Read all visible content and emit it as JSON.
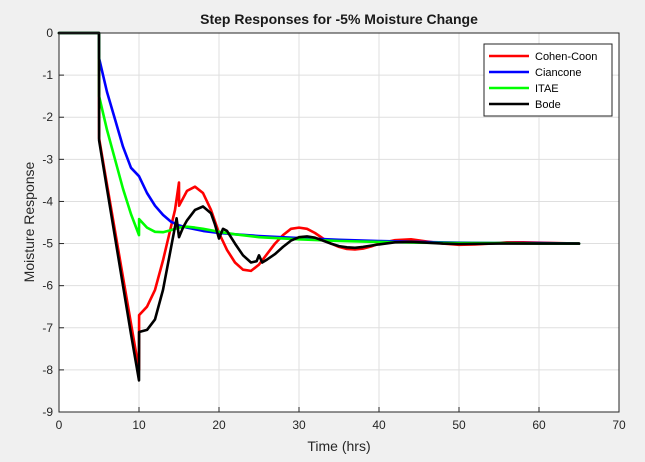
{
  "chart_data": {
    "type": "line",
    "title": "Step Responses for -5% Moisture Change",
    "xlabel": "Time (hrs)",
    "ylabel": "Moisture Response",
    "xlim": [
      0,
      70
    ],
    "ylim": [
      -9,
      0
    ],
    "xticks": [
      0,
      10,
      20,
      30,
      40,
      50,
      60,
      70
    ],
    "yticks": [
      0,
      -1,
      -2,
      -3,
      -4,
      -5,
      -6,
      -7,
      -8,
      -9
    ],
    "grid": true,
    "legend_position": "top-right",
    "series": [
      {
        "name": "Cohen-Coon",
        "color": "#ff0000",
        "x": [
          0,
          5,
          5.01,
          6,
          7,
          8,
          9,
          10,
          10.01,
          11,
          12,
          13,
          14,
          14.5,
          15,
          15.01,
          16,
          17,
          18,
          19,
          20,
          21,
          22,
          23,
          24,
          25,
          26,
          27,
          28,
          29,
          30,
          31,
          32,
          33,
          34,
          35,
          36,
          37,
          38,
          39,
          40,
          42,
          44,
          46,
          48,
          50,
          52,
          54,
          56,
          58,
          60,
          62,
          65
        ],
        "y": [
          0,
          0,
          -2.5,
          -3.6,
          -4.7,
          -5.8,
          -6.9,
          -8.0,
          -6.7,
          -6.5,
          -6.1,
          -5.4,
          -4.6,
          -4.2,
          -3.55,
          -4.1,
          -3.75,
          -3.65,
          -3.8,
          -4.2,
          -4.75,
          -5.15,
          -5.45,
          -5.62,
          -5.65,
          -5.5,
          -5.25,
          -5.0,
          -4.8,
          -4.65,
          -4.62,
          -4.65,
          -4.75,
          -4.88,
          -5.0,
          -5.08,
          -5.13,
          -5.14,
          -5.12,
          -5.07,
          -5.0,
          -4.92,
          -4.9,
          -4.95,
          -5.0,
          -5.03,
          -5.02,
          -5.0,
          -4.97,
          -4.97,
          -4.98,
          -4.99,
          -5.0
        ]
      },
      {
        "name": "Ciancone",
        "color": "#0000ff",
        "x": [
          0,
          5,
          5.01,
          6,
          7,
          8,
          9,
          10,
          11,
          12,
          13,
          14,
          15,
          16,
          17,
          18,
          20,
          22,
          25,
          30,
          35,
          40,
          45,
          50,
          55,
          60,
          65
        ],
        "y": [
          0,
          0,
          -0.6,
          -1.4,
          -2.05,
          -2.7,
          -3.2,
          -3.4,
          -3.8,
          -4.1,
          -4.32,
          -4.48,
          -4.57,
          -4.62,
          -4.66,
          -4.7,
          -4.75,
          -4.78,
          -4.82,
          -4.87,
          -4.91,
          -4.94,
          -4.96,
          -4.98,
          -4.99,
          -4.99,
          -5.0
        ]
      },
      {
        "name": "ITAE",
        "color": "#00ff00",
        "x": [
          0,
          5,
          5.01,
          6,
          7,
          8,
          9,
          10,
          10.01,
          11,
          12,
          13,
          14,
          15,
          16,
          17,
          18,
          20,
          22,
          25,
          30,
          35,
          40,
          45,
          50,
          55,
          60,
          65
        ],
        "y": [
          0,
          0,
          -1.5,
          -2.3,
          -3.0,
          -3.7,
          -4.3,
          -4.8,
          -4.42,
          -4.62,
          -4.72,
          -4.73,
          -4.68,
          -4.62,
          -4.6,
          -4.62,
          -4.65,
          -4.72,
          -4.78,
          -4.85,
          -4.9,
          -4.94,
          -4.96,
          -4.98,
          -4.99,
          -4.99,
          -5.0,
          -5.0
        ]
      },
      {
        "name": "Bode",
        "color": "#000000",
        "x": [
          0,
          5,
          5.01,
          6,
          7,
          8,
          9,
          10,
          10.01,
          11,
          12,
          13,
          14,
          14.7,
          15,
          15.5,
          16,
          17,
          18,
          19,
          19.5,
          20,
          20.5,
          21,
          22,
          23,
          24,
          24.7,
          25,
          25.4,
          26,
          27,
          28,
          29,
          30,
          31,
          32,
          33,
          34,
          35,
          36,
          37,
          38,
          40,
          42,
          44,
          46,
          48,
          50,
          55,
          60,
          65
        ],
        "y": [
          0,
          0,
          -2.55,
          -3.7,
          -4.85,
          -6.0,
          -7.15,
          -8.25,
          -7.1,
          -7.05,
          -6.8,
          -6.1,
          -5.1,
          -4.4,
          -4.85,
          -4.62,
          -4.45,
          -4.2,
          -4.12,
          -4.28,
          -4.55,
          -4.88,
          -4.65,
          -4.7,
          -5.0,
          -5.28,
          -5.45,
          -5.42,
          -5.28,
          -5.45,
          -5.38,
          -5.25,
          -5.08,
          -4.93,
          -4.85,
          -4.83,
          -4.86,
          -4.93,
          -5.0,
          -5.06,
          -5.09,
          -5.1,
          -5.08,
          -5.02,
          -4.97,
          -4.96,
          -4.98,
          -5.0,
          -5.01,
          -5.0,
          -5.0,
          -5.0
        ]
      }
    ]
  }
}
